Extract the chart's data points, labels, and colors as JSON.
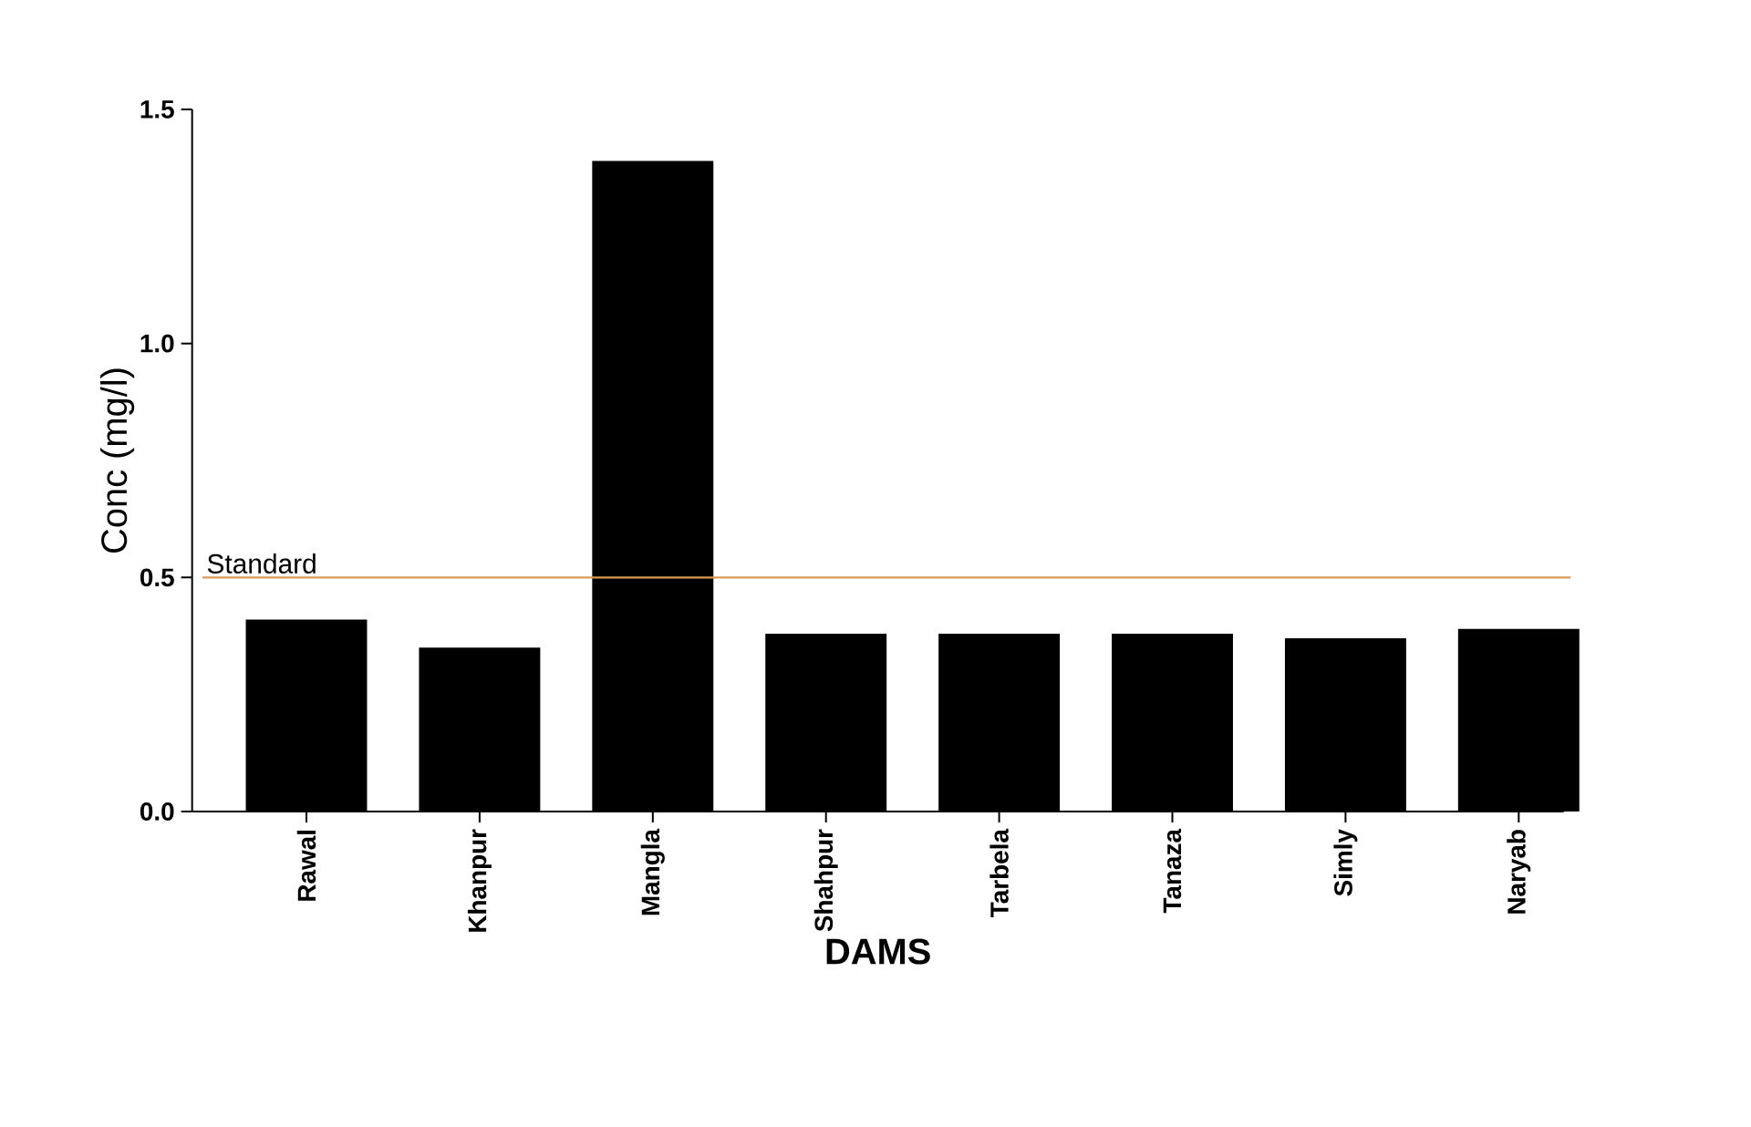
{
  "chart_data": {
    "type": "bar",
    "xlabel": "DAMS",
    "ylabel": "Conc (mg/l)",
    "categories": [
      "Rawal",
      "Khanpur",
      "Mangla",
      "Shahpur",
      "Tarbela",
      "Tanaza",
      "Simly",
      "Naryab"
    ],
    "values": [
      0.41,
      0.35,
      1.39,
      0.38,
      0.38,
      0.38,
      0.37,
      0.39
    ],
    "color": "#000000",
    "ylim": [
      0,
      1.5
    ],
    "yticks": [
      {
        "value": 0,
        "label": "0.0"
      },
      {
        "value": 0.5,
        "label": "0.5"
      },
      {
        "value": 1,
        "label": "1.0"
      },
      {
        "value": 1.5,
        "label": "1.5"
      }
    ],
    "ref_lines": [
      {
        "axis": "y",
        "value": 0.5,
        "label": "Standard",
        "color": "#d99a55"
      }
    ]
  }
}
